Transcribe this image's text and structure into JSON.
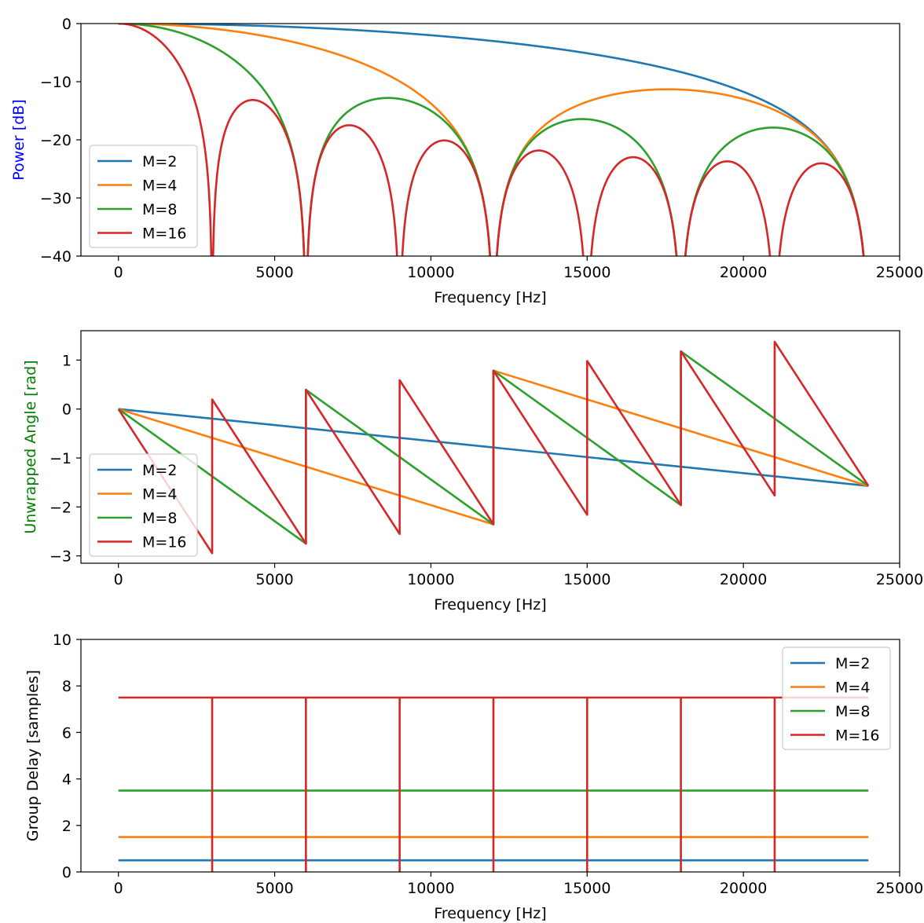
{
  "colors": {
    "M=2": "#1f77b4",
    "M=4": "#ff7f0e",
    "M=8": "#2ca02c",
    "M=16": "#d62728"
  },
  "chart_data": [
    {
      "type": "line",
      "xlabel": "Frequency [Hz]",
      "ylabel": "Power [dB]",
      "ylabel_color": "#0000ff",
      "xlim": [
        -1200,
        25000
      ],
      "ylim": [
        -40,
        0
      ],
      "xticks": [
        "0",
        "5000",
        "10000",
        "15000",
        "20000",
        "25000"
      ],
      "xtick_values": [
        0,
        5000,
        10000,
        15000,
        20000,
        25000
      ],
      "yticks": [
        "0",
        "−10",
        "−20",
        "−30",
        "−40"
      ],
      "ytick_values": [
        0,
        -10,
        -20,
        -30,
        -40
      ],
      "legend_position": "lower-left",
      "series": [
        {
          "name": "M=2",
          "kind": "power",
          "M": 2
        },
        {
          "name": "M=4",
          "kind": "power",
          "M": 4
        },
        {
          "name": "M=8",
          "kind": "power",
          "M": 8
        },
        {
          "name": "M=16",
          "kind": "power",
          "M": 16
        }
      ]
    },
    {
      "type": "line",
      "xlabel": "Frequency [Hz]",
      "ylabel": "Unwrapped Angle [rad]",
      "ylabel_color": "#008000",
      "xlim": [
        -1200,
        25000
      ],
      "ylim": [
        -3.15,
        1.6
      ],
      "xticks": [
        "0",
        "5000",
        "10000",
        "15000",
        "20000",
        "25000"
      ],
      "xtick_values": [
        0,
        5000,
        10000,
        15000,
        20000,
        25000
      ],
      "yticks": [
        "1",
        "0",
        "−1",
        "−2",
        "−3"
      ],
      "ytick_values": [
        1,
        0,
        -1,
        -2,
        -3
      ],
      "legend_position": "lower-left",
      "series": [
        {
          "name": "M=2",
          "x": [
            0,
            24000
          ],
          "y": [
            0,
            -1.571
          ]
        },
        {
          "name": "M=4",
          "x": [
            0,
            12000,
            12000,
            24000
          ],
          "y": [
            0,
            -2.356,
            0.785,
            -1.571
          ]
        },
        {
          "name": "M=8",
          "x": [
            0,
            6000,
            6000,
            12000,
            12000,
            18000,
            18000,
            24000
          ],
          "y": [
            0,
            -2.749,
            0.393,
            -2.356,
            0.785,
            -1.963,
            1.178,
            -1.571
          ]
        },
        {
          "name": "M=16",
          "x": [
            0,
            3000,
            3000,
            6000,
            6000,
            9000,
            9000,
            12000,
            12000,
            15000,
            15000,
            18000,
            18000,
            21000,
            21000,
            24000
          ],
          "y": [
            0,
            -2.945,
            0.196,
            -2.749,
            0.393,
            -2.552,
            0.589,
            -2.356,
            0.785,
            -2.16,
            0.982,
            -1.963,
            1.178,
            -1.767,
            1.374,
            -1.571
          ]
        }
      ]
    },
    {
      "type": "line",
      "xlabel": "Frequency [Hz]",
      "ylabel": "Group Delay [samples]",
      "xlim": [
        -1200,
        25000
      ],
      "ylim": [
        0,
        10
      ],
      "xticks": [
        "0",
        "5000",
        "10000",
        "15000",
        "20000",
        "25000"
      ],
      "xtick_values": [
        0,
        5000,
        10000,
        15000,
        20000,
        25000
      ],
      "yticks": [
        "0",
        "2",
        "4",
        "6",
        "8",
        "10"
      ],
      "ytick_values": [
        0,
        2,
        4,
        6,
        8,
        10
      ],
      "legend_position": "upper-right",
      "series": [
        {
          "name": "M=2",
          "x": [
            0,
            24000
          ],
          "y": [
            0.5,
            0.5
          ]
        },
        {
          "name": "M=4",
          "x": [
            0,
            24000
          ],
          "y": [
            1.5,
            1.5
          ]
        },
        {
          "name": "M=8",
          "x": [
            0,
            24000
          ],
          "y": [
            3.5,
            3.5
          ]
        },
        {
          "name": "M=16",
          "x": [
            0,
            3000,
            3000,
            3000,
            6000,
            6000,
            6000,
            9000,
            9000,
            9000,
            12000,
            12000,
            12000,
            15000,
            15000,
            15000,
            18000,
            18000,
            18000,
            21000,
            21000,
            21000,
            24000
          ],
          "y": [
            7.5,
            7.5,
            0,
            7.5,
            7.5,
            0,
            7.5,
            7.5,
            0,
            7.5,
            7.5,
            0,
            7.5,
            7.5,
            0,
            7.5,
            7.5,
            0,
            7.5,
            7.5,
            0,
            7.5,
            7.5
          ]
        }
      ]
    }
  ]
}
